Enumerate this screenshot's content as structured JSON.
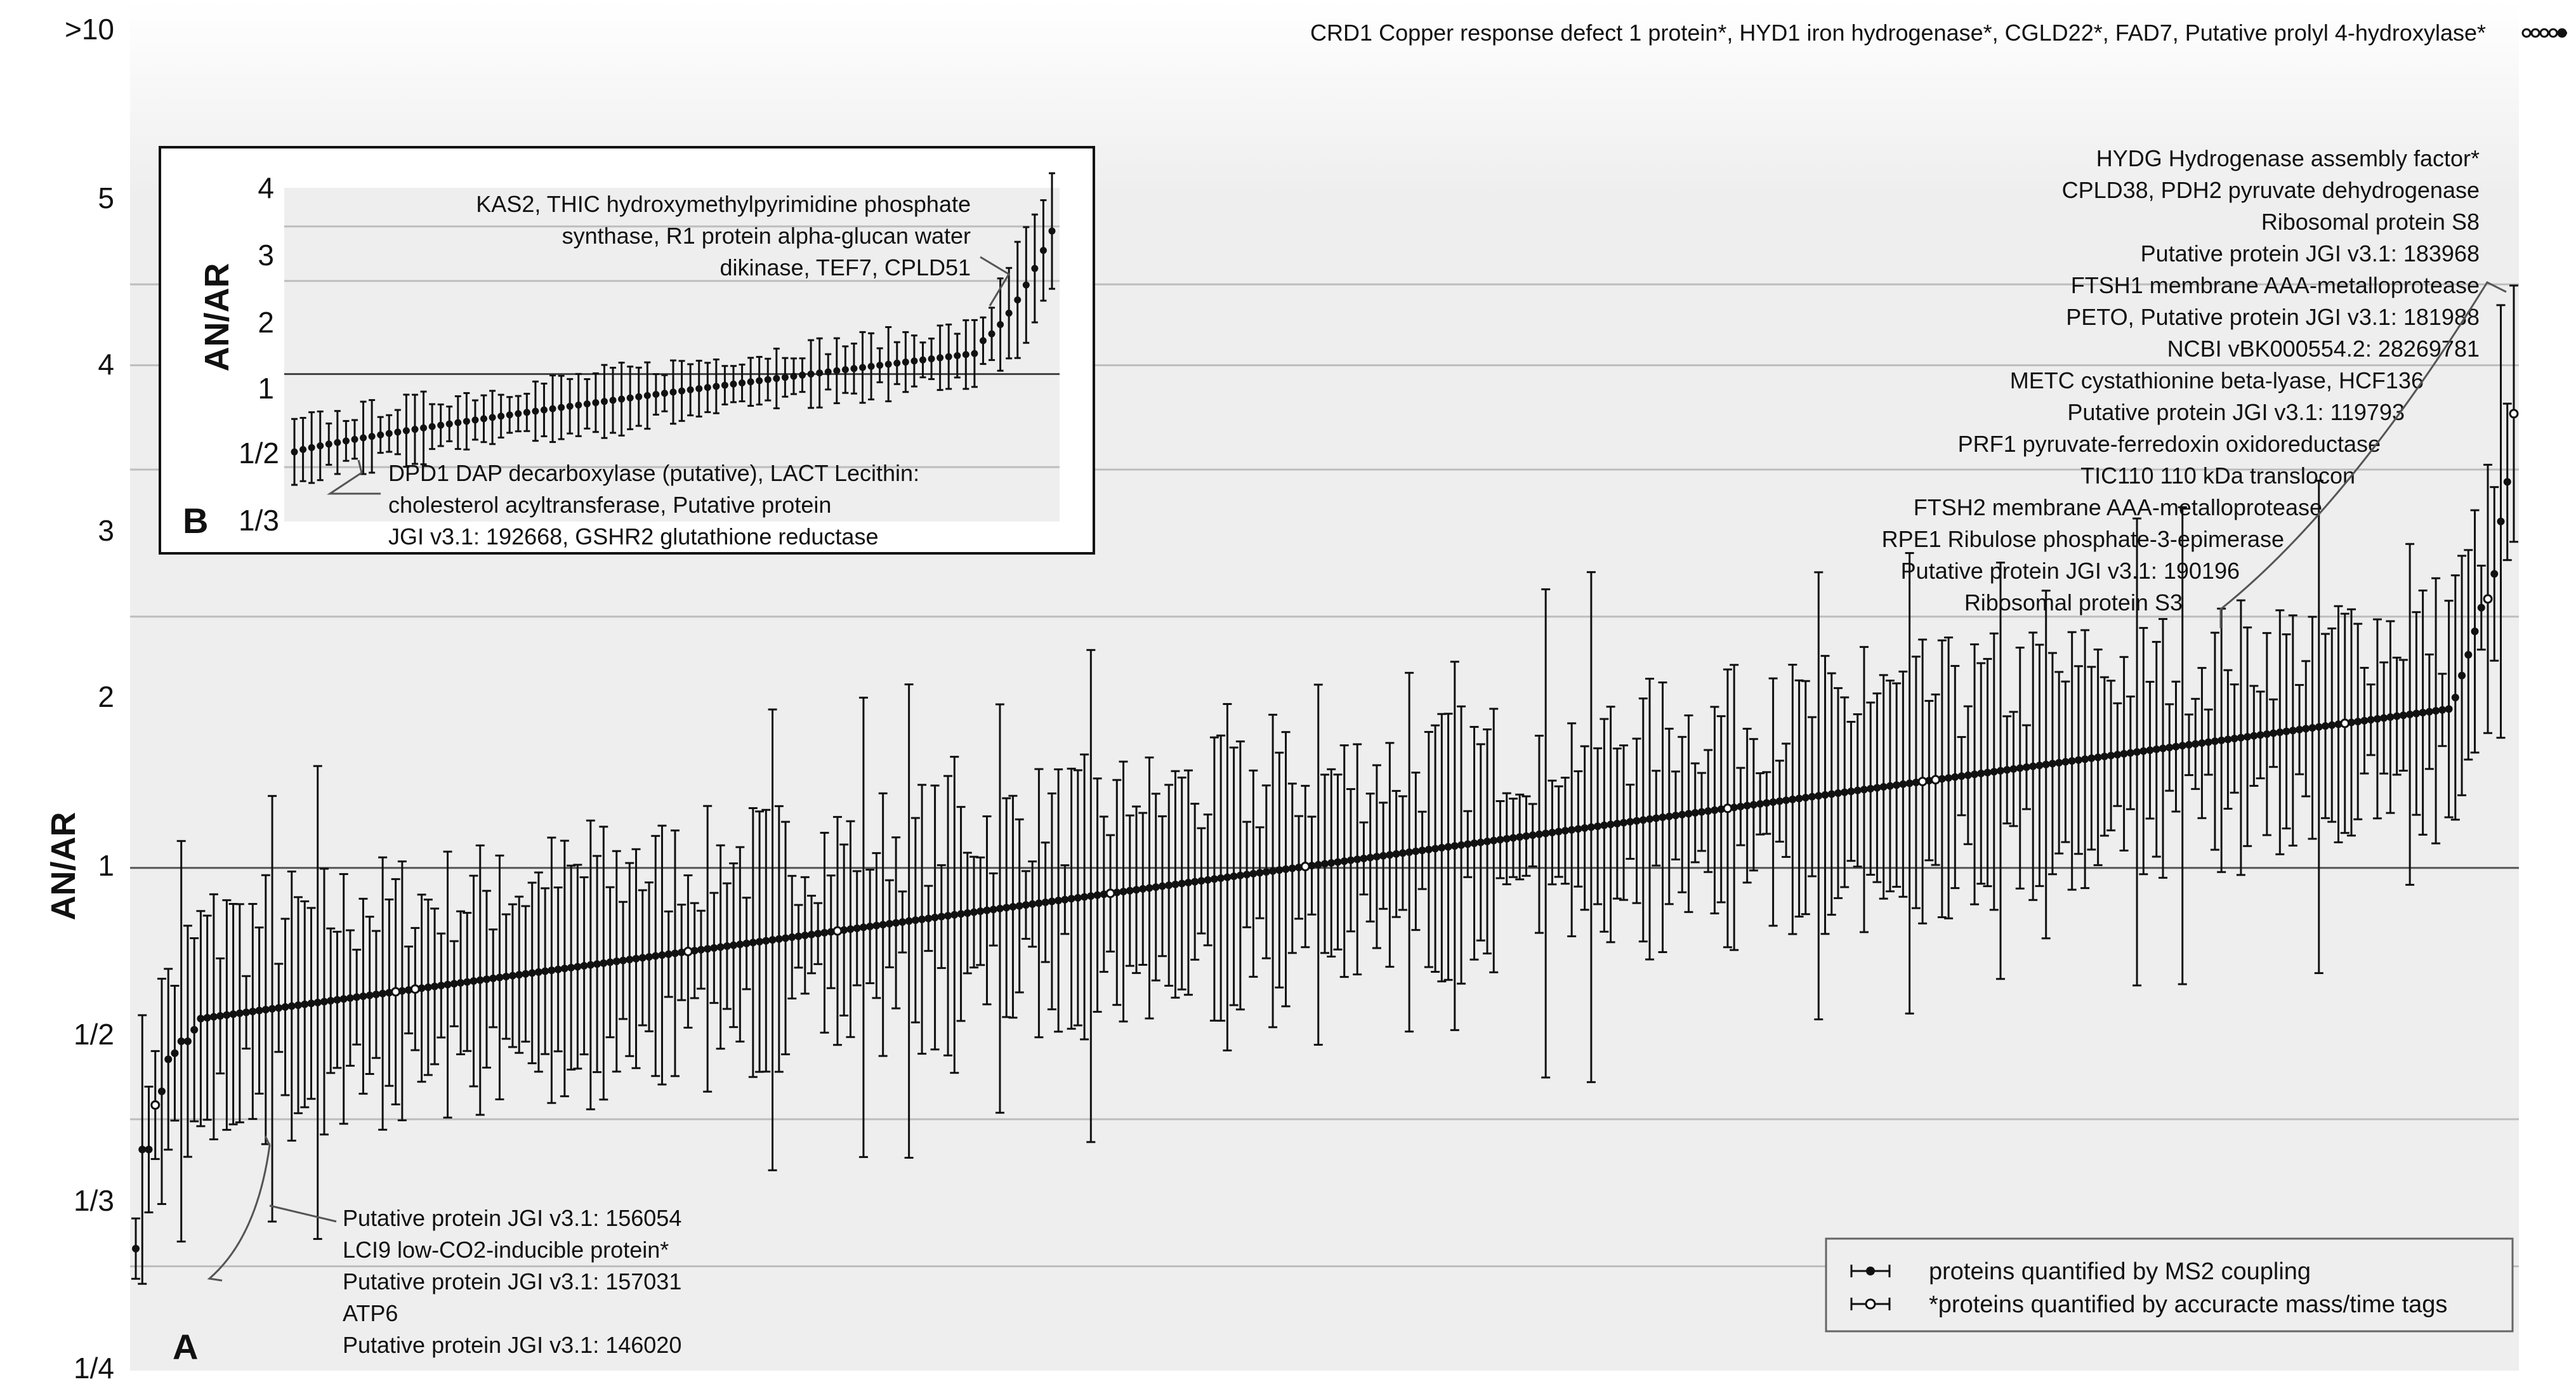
{
  "chart_data": [
    {
      "panel": "A",
      "type": "scatter",
      "ylabel": "AN/AR",
      "y_scale": "log2",
      "y_ticks": [
        "1/4",
        "1/3",
        "1/2",
        "1",
        "2",
        "3",
        "4",
        "5",
        ">10"
      ],
      "n_points": 367,
      "point_ratios_sorted": [
        0.35,
        0.46,
        0.46,
        0.52,
        0.54,
        0.59,
        0.6,
        0.62,
        0.62,
        0.64,
        1.6,
        1.7,
        1.8,
        1.92,
        2.05,
        2.1,
        2.25,
        2.6,
        2.9,
        3.5
      ],
      "accurate_mass_point_indices": [
        3,
        40,
        43,
        85,
        108,
        150,
        180,
        245,
        275,
        277,
        340,
        362,
        366
      ],
      "top_annotation": "CRD1 Copper response defect 1 protein*, HYD1 iron hydrogenase*, CGLD22*, FAD7, Putative prolyl 4-hydroxylase*",
      "low_annotations": [
        "Putative protein JGI v3.1: 156054",
        "LCI9 low-CO2-inducible protein*",
        "Putative protein JGI v3.1: 157031",
        "ATP6",
        "Putative protein JGI v3.1: 146020"
      ],
      "high_annotations": [
        "HYDG Hydrogenase assembly factor*",
        "CPLD38, PDH2 pyruvate dehydrogenase",
        "Ribosomal protein S8",
        "Putative protein JGI v3.1: 183968",
        "FTSH1 membrane AAA-metalloprotease",
        "PETO, Putative protein JGI v3.1: 181988",
        "NCBI vBK000554.2: 28269781",
        "METC cystathionine beta-lyase, HCF136",
        "Putative protein JGI v3.1: 119793",
        "PRF1 pyruvate-ferredoxin oxidoreductase",
        "TIC110 110 kDa translocon",
        "FTSH2 membrane AAA-metalloprotease",
        "RPE1 Ribulose phosphate-3-epimerase",
        "Putative protein JGI v3.1: 190196",
        "Ribosomal protein S3"
      ],
      "legend": {
        "position": "bottom-right",
        "entries": [
          "proteins quantified by MS2 coupling",
          "*proteins quantified by accuracte mass/time tags"
        ]
      }
    },
    {
      "panel": "B",
      "type": "scatter",
      "ylabel": "AN/AR",
      "y_scale": "log2",
      "y_ticks": [
        "1/3",
        "1/2",
        "1",
        "2",
        "3",
        "4"
      ],
      "n_points": 89,
      "point_range": [
        0.56,
        2.9
      ],
      "upper_annotation": "KAS2, THIC hydroxymethylpyrimidine phosphate synthase, R1 protein alpha-glucan water dikinase, TEF7, CPLD51",
      "lower_annotation": "DPD1 DAP decarboxylase (putative), LACT Lecithin: cholesterol acyltransferase, Putative protein JGI v3.1: 192668, GSHR2 glutathione reductase"
    }
  ],
  "labels": {
    "panel_a": "A",
    "panel_b": "B",
    "top_annotation": "CRD1 Copper response defect 1 protein*, HYD1 iron hydrogenase*, CGLD22*, FAD7, Putative prolyl 4-hydroxylase*",
    "inset_upper_lines": [
      "KAS2, THIC hydroxymethylpyrimidine phosphate",
      "synthase, R1 protein alpha-glucan water",
      "dikinase, TEF7, CPLD51"
    ],
    "inset_lower_lines": [
      "DPD1 DAP decarboxylase (putative), LACT Lecithin:",
      "cholesterol acyltransferase, Putative protein",
      "JGI v3.1: 192668, GSHR2 glutathione reductase"
    ]
  },
  "colors": {
    "panel_bg": "#eeeeee",
    "top_band": "#f6f6f6",
    "grid": "#bdbdbd",
    "ink": "#111111"
  }
}
